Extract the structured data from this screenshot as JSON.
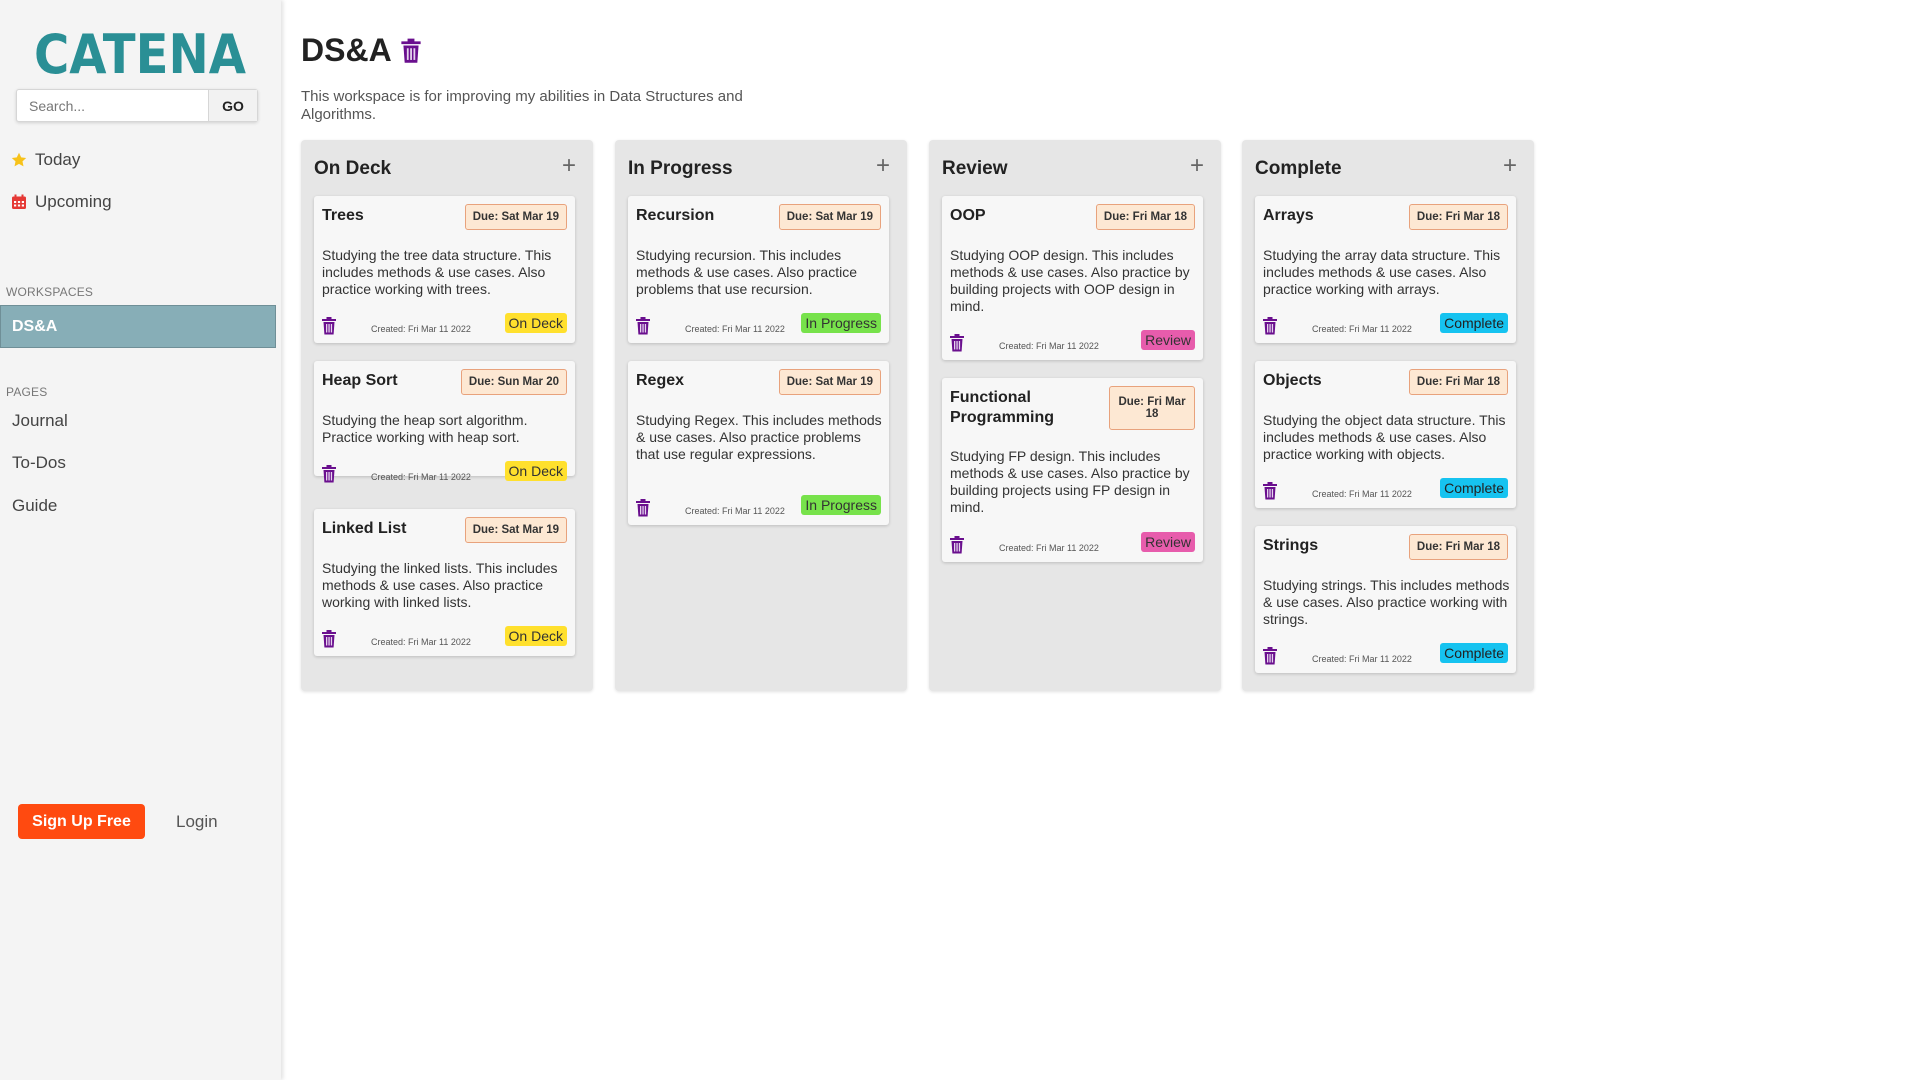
{
  "sidebar": {
    "logo_text": "CATENA",
    "search": {
      "placeholder": "Search...",
      "button": "GO"
    },
    "nav": [
      {
        "label": "Today",
        "icon": "star-icon"
      },
      {
        "label": "Upcoming",
        "icon": "calendar-icon"
      }
    ],
    "workspaces_label": "WORKSPACES",
    "workspaces": [
      "DS&A"
    ],
    "pages_label": "PAGES",
    "pages": [
      "Journal",
      "To-Dos",
      "Guide"
    ],
    "signup": "Sign Up Free",
    "login": "Login"
  },
  "workspace": {
    "title": "DS&A",
    "description": "This workspace is for improving my abilities in Data Structures and Algorithms."
  },
  "colors": {
    "accent": "#87aeb7",
    "logo": "#2a8f95",
    "signup": "#ff4a10",
    "trash": "#6a0f8e",
    "on_deck": "#ffe02d",
    "in_progress": "#77e24b",
    "review": "#e75cac",
    "complete": "#16c3f0"
  },
  "columns": [
    {
      "title": "On Deck",
      "add": "+",
      "cards": [
        {
          "title": "Trees",
          "due": "Due: Sat Mar 19",
          "desc": "Studying the tree data structure. This includes methods & use cases. Also practice working with trees.",
          "created": "Created: Fri Mar 11 2022",
          "status": "On Deck"
        },
        {
          "title": "Heap Sort",
          "due": "Due: Sun Mar 20",
          "desc": "Studying the heap sort algorithm. Practice working with heap sort.",
          "created": "Created: Fri Mar 11 2022",
          "status": "On Deck"
        },
        {
          "title": "Linked List",
          "due": "Due: Sat Mar 19",
          "desc": "Studying the linked lists. This includes methods & use cases. Also practice working with linked lists.",
          "created": "Created: Fri Mar 11 2022",
          "status": "On Deck"
        }
      ]
    },
    {
      "title": "In Progress",
      "add": "+",
      "cards": [
        {
          "title": "Recursion",
          "due": "Due: Sat Mar 19",
          "desc": "Studying recursion. This includes methods & use cases. Also practice problems that use recursion.",
          "created": "Created: Fri Mar 11 2022",
          "status": "In Progress"
        },
        {
          "title": "Regex",
          "due": "Due: Sat Mar 19",
          "desc": "Studying Regex. This includes methods & use cases. Also practice problems that use regular expressions.",
          "created": "Created: Fri Mar 11 2022",
          "status": "In Progress"
        }
      ]
    },
    {
      "title": "Review",
      "add": "+",
      "cards": [
        {
          "title": "OOP",
          "due": "Due: Fri Mar 18",
          "desc": "Studying OOP design. This includes methods & use cases. Also practice by building projects with OOP design in mind.",
          "created": "Created: Fri Mar 11 2022",
          "status": "Review"
        },
        {
          "title": "Functional Programming",
          "due": "Due: Fri Mar 18",
          "desc": "Studying FP design. This includes methods & use cases. Also practice by building projects using FP design in mind.",
          "created": "Created: Fri Mar 11 2022",
          "status": "Review"
        }
      ]
    },
    {
      "title": "Complete",
      "add": "+",
      "cards": [
        {
          "title": "Arrays",
          "due": "Due: Fri Mar 18",
          "desc": "Studying the array data structure. This includes methods & use cases. Also practice working with arrays.",
          "created": "Created: Fri Mar 11 2022",
          "status": "Complete"
        },
        {
          "title": "Objects",
          "due": "Due: Fri Mar 18",
          "desc": "Studying the object data structure. This includes methods & use cases. Also practice working with objects.",
          "created": "Created: Fri Mar 11 2022",
          "status": "Complete"
        },
        {
          "title": "Strings",
          "due": "Due: Fri Mar 18",
          "desc": "Studying strings. This includes methods & use cases. Also practice working with strings.",
          "created": "Created: Fri Mar 11 2022",
          "status": "Complete"
        }
      ]
    }
  ]
}
